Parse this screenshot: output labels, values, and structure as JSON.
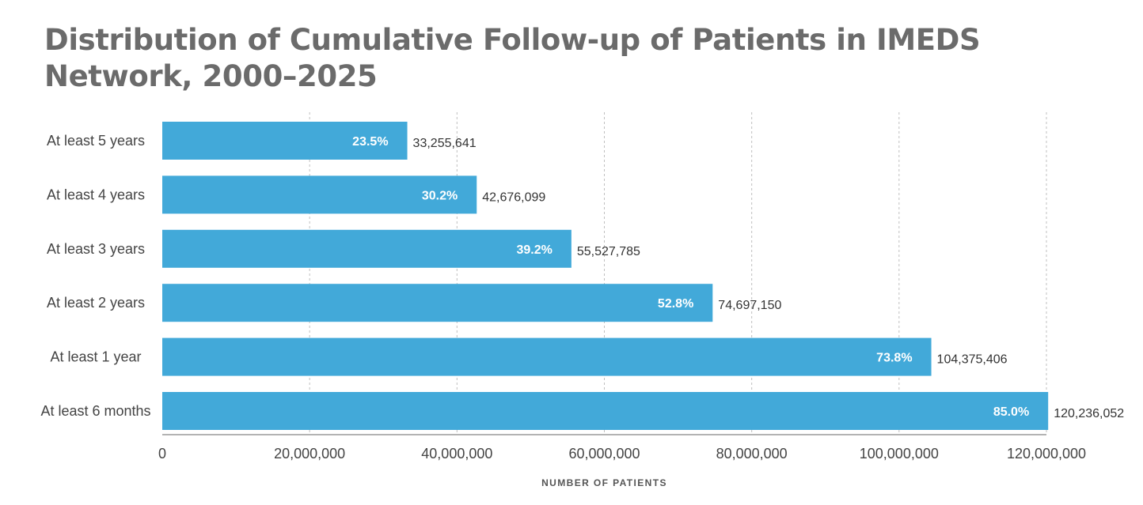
{
  "chart_data": {
    "type": "bar",
    "orientation": "horizontal",
    "title": "Distribution of Cumulative Follow-up of Patients in IMEDS Network, 2000–2025",
    "xlabel": "NUMBER OF PATIENTS",
    "ylabel": "",
    "xlim": [
      0,
      120000000
    ],
    "x_ticks": [
      0,
      20000000,
      40000000,
      60000000,
      80000000,
      100000000,
      120000000
    ],
    "x_tick_labels": [
      "0",
      "20,000,000",
      "40,000,000",
      "60,000,000",
      "80,000,000",
      "100,000,000",
      "120,000,000"
    ],
    "grid": true,
    "bar_color": "#42a9d9",
    "categories": [
      "At least 5 years",
      "At least 4 years",
      "At least 3 years",
      "At least 2 years",
      "At least 1 year",
      "At least 6 months"
    ],
    "values": [
      33255641,
      42676099,
      55527785,
      74697150,
      104375406,
      120236052
    ],
    "value_labels": [
      "33,255,641",
      "42,676,099",
      "55,527,785",
      "74,697,150",
      "104,375,406",
      "120,236,052"
    ],
    "percent_labels": [
      "23.5%",
      "30.2%",
      "39.2%",
      "52.8%",
      "73.8%",
      "85.0%"
    ]
  }
}
